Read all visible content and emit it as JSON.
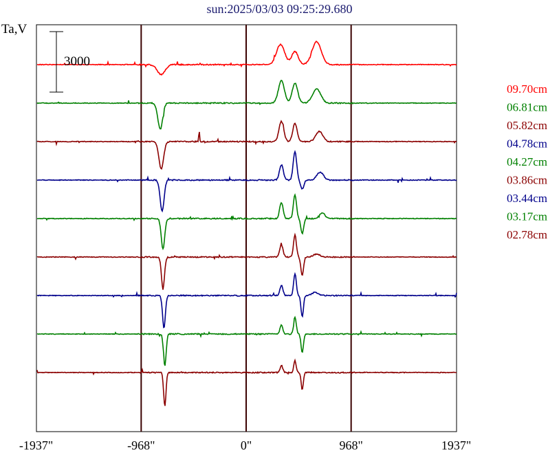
{
  "title": "sun:2025/03/03 09:25:29.680",
  "colors": {
    "red": "#ff0000",
    "green": "#008000",
    "maroon": "#8b0000",
    "navy": "#00008b",
    "frame": "#000000",
    "divider": "#3a0000"
  },
  "chart_data": {
    "type": "line",
    "title": "sun:2025/03/03 09:25:29.680",
    "ylabel": "Ta,V",
    "scale_bar_label": "3000",
    "scale_bar_value": 3000,
    "xlim": [
      -1937,
      1937
    ],
    "x_ticks": [
      {
        "value": -1937,
        "label": "-1937\""
      },
      {
        "value": -968,
        "label": "-968\""
      },
      {
        "value": 0,
        "label": "0\""
      },
      {
        "value": 968,
        "label": "968\""
      },
      {
        "value": 1937,
        "label": "1937\""
      }
    ],
    "grid_lines_x": [
      -968,
      0,
      968
    ],
    "legend_position": "right",
    "series": [
      {
        "name": "09.70cm",
        "color": "#ff0000",
        "start_value": -1937,
        "features": [
          {
            "x": -783,
            "amp": -500,
            "w": 35
          },
          {
            "x": 317,
            "amp": 1000,
            "w": 38
          },
          {
            "x": 450,
            "amp": 650,
            "w": 30
          },
          {
            "x": 650,
            "amp": 1150,
            "w": 42
          }
        ]
      },
      {
        "name": "06.81cm",
        "color": "#008000",
        "start_value": -1937,
        "features": [
          {
            "x": -792,
            "amp": -1300,
            "w": 22
          },
          {
            "x": 325,
            "amp": 1100,
            "w": 28
          },
          {
            "x": 450,
            "amp": 1000,
            "w": 25
          },
          {
            "x": 650,
            "amp": 700,
            "w": 38
          }
        ]
      },
      {
        "name": "05.82cm",
        "color": "#8b0000",
        "start_value": -1937,
        "features": [
          {
            "x": -783,
            "amp": -1350,
            "w": 22
          },
          {
            "x": -433,
            "amp": 550,
            "w": 4
          },
          {
            "x": 325,
            "amp": 1000,
            "w": 22
          },
          {
            "x": 450,
            "amp": 900,
            "w": 20
          },
          {
            "x": 675,
            "amp": 500,
            "w": 32
          }
        ]
      },
      {
        "name": "04.78cm",
        "color": "#00008b",
        "start_value": -1937,
        "features": [
          {
            "x": -775,
            "amp": -1550,
            "w": 18
          },
          {
            "x": 325,
            "amp": 750,
            "w": 18
          },
          {
            "x": 450,
            "amp": 1400,
            "w": 16
          },
          {
            "x": 517,
            "amp": -450,
            "w": 15
          },
          {
            "x": 683,
            "amp": 400,
            "w": 30
          }
        ]
      },
      {
        "name": "04.27cm",
        "color": "#008000",
        "start_value": -1937,
        "features": [
          {
            "x": -767,
            "amp": -1500,
            "w": 16
          },
          {
            "x": 325,
            "amp": 800,
            "w": 16
          },
          {
            "x": 450,
            "amp": 1200,
            "w": 14
          },
          {
            "x": 517,
            "amp": -750,
            "w": 13
          },
          {
            "x": 700,
            "amp": 280,
            "w": 26
          }
        ]
      },
      {
        "name": "03.86cm",
        "color": "#8b0000",
        "start_value": -1937,
        "features": [
          {
            "x": -767,
            "amp": -1550,
            "w": 14
          },
          {
            "x": 325,
            "amp": 600,
            "w": 15
          },
          {
            "x": 450,
            "amp": 1100,
            "w": 13
          },
          {
            "x": 517,
            "amp": -900,
            "w": 12
          },
          {
            "x": 650,
            "amp": 150,
            "w": 30
          }
        ]
      },
      {
        "name": "03.44cm",
        "color": "#00008b",
        "start_value": -1937,
        "features": [
          {
            "x": -758,
            "amp": -1600,
            "w": 13
          },
          {
            "x": 325,
            "amp": 500,
            "w": 14
          },
          {
            "x": 450,
            "amp": 1100,
            "w": 12
          },
          {
            "x": 517,
            "amp": -1050,
            "w": 11
          },
          {
            "x": 633,
            "amp": 150,
            "w": 28
          }
        ]
      },
      {
        "name": "03.17cm",
        "color": "#008000",
        "start_value": -1937,
        "features": [
          {
            "x": -750,
            "amp": -1600,
            "w": 12
          },
          {
            "x": 325,
            "amp": 450,
            "w": 13
          },
          {
            "x": 450,
            "amp": 850,
            "w": 12
          },
          {
            "x": 517,
            "amp": -900,
            "w": 11
          }
        ]
      },
      {
        "name": "02.78cm",
        "color": "#8b0000",
        "start_value": -1937,
        "features": [
          {
            "x": -750,
            "amp": -1650,
            "w": 11
          },
          {
            "x": 325,
            "amp": 350,
            "w": 12
          },
          {
            "x": 450,
            "amp": 600,
            "w": 11
          },
          {
            "x": 517,
            "amp": -850,
            "w": 10
          }
        ]
      }
    ]
  }
}
